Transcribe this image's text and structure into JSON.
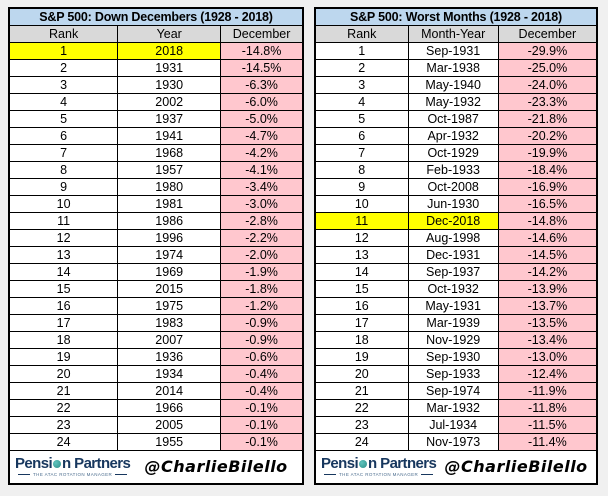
{
  "chart_data": [
    {
      "type": "table",
      "title": "S&P 500: Down Decembers (1928 - 2018)",
      "columns": [
        "Rank",
        "Year",
        "December"
      ],
      "highlight_row_rank": 1,
      "rows": [
        [
          1,
          "2018",
          "-14.8%"
        ],
        [
          2,
          "1931",
          "-14.5%"
        ],
        [
          3,
          "1930",
          "-6.3%"
        ],
        [
          4,
          "2002",
          "-6.0%"
        ],
        [
          5,
          "1937",
          "-5.0%"
        ],
        [
          6,
          "1941",
          "-4.7%"
        ],
        [
          7,
          "1968",
          "-4.2%"
        ],
        [
          8,
          "1957",
          "-4.1%"
        ],
        [
          9,
          "1980",
          "-3.4%"
        ],
        [
          10,
          "1981",
          "-3.0%"
        ],
        [
          11,
          "1986",
          "-2.8%"
        ],
        [
          12,
          "1996",
          "-2.2%"
        ],
        [
          13,
          "1974",
          "-2.0%"
        ],
        [
          14,
          "1969",
          "-1.9%"
        ],
        [
          15,
          "2015",
          "-1.8%"
        ],
        [
          16,
          "1975",
          "-1.2%"
        ],
        [
          17,
          "1983",
          "-0.9%"
        ],
        [
          18,
          "2007",
          "-0.9%"
        ],
        [
          19,
          "1936",
          "-0.6%"
        ],
        [
          20,
          "1934",
          "-0.4%"
        ],
        [
          21,
          "2014",
          "-0.4%"
        ],
        [
          22,
          "1966",
          "-0.1%"
        ],
        [
          23,
          "2005",
          "-0.1%"
        ],
        [
          24,
          "1955",
          "-0.1%"
        ]
      ]
    },
    {
      "type": "table",
      "title": "S&P 500: Worst Months (1928 - 2018)",
      "columns": [
        "Rank",
        "Month-Year",
        "December"
      ],
      "highlight_row_rank": 11,
      "rows": [
        [
          1,
          "Sep-1931",
          "-29.9%"
        ],
        [
          2,
          "Mar-1938",
          "-25.0%"
        ],
        [
          3,
          "May-1940",
          "-24.0%"
        ],
        [
          4,
          "May-1932",
          "-23.3%"
        ],
        [
          5,
          "Oct-1987",
          "-21.8%"
        ],
        [
          6,
          "Apr-1932",
          "-20.2%"
        ],
        [
          7,
          "Oct-1929",
          "-19.9%"
        ],
        [
          8,
          "Feb-1933",
          "-18.4%"
        ],
        [
          9,
          "Oct-2008",
          "-16.9%"
        ],
        [
          10,
          "Jun-1930",
          "-16.5%"
        ],
        [
          11,
          "Dec-2018",
          "-14.8%"
        ],
        [
          12,
          "Aug-1998",
          "-14.6%"
        ],
        [
          13,
          "Dec-1931",
          "-14.5%"
        ],
        [
          14,
          "Sep-1937",
          "-14.2%"
        ],
        [
          15,
          "Oct-1932",
          "-13.9%"
        ],
        [
          16,
          "May-1931",
          "-13.7%"
        ],
        [
          17,
          "Mar-1939",
          "-13.5%"
        ],
        [
          18,
          "Nov-1929",
          "-13.4%"
        ],
        [
          19,
          "Sep-1930",
          "-13.0%"
        ],
        [
          20,
          "Sep-1933",
          "-12.4%"
        ],
        [
          21,
          "Sep-1974",
          "-11.9%"
        ],
        [
          22,
          "Mar-1932",
          "-11.8%"
        ],
        [
          23,
          "Jul-1934",
          "-11.5%"
        ],
        [
          24,
          "Nov-1973",
          "-11.4%"
        ]
      ]
    }
  ],
  "footer": {
    "logo_part1": "Pensi",
    "logo_part2": "n Partners",
    "logo_tagline": "THE ATAC ROTATION MANAGER",
    "handle": "@CharlieBilello"
  },
  "colors": {
    "title_bg": "#BDD7EE",
    "header_bg": "#D9D9D9",
    "negative_bg": "#FFC7CE",
    "negative_text": "#C00018",
    "highlight_bg": "#FFFF00",
    "logo_navy": "#17375E",
    "logo_teal": "#2E8F8A",
    "page_bg": "#F0F0F0"
  }
}
